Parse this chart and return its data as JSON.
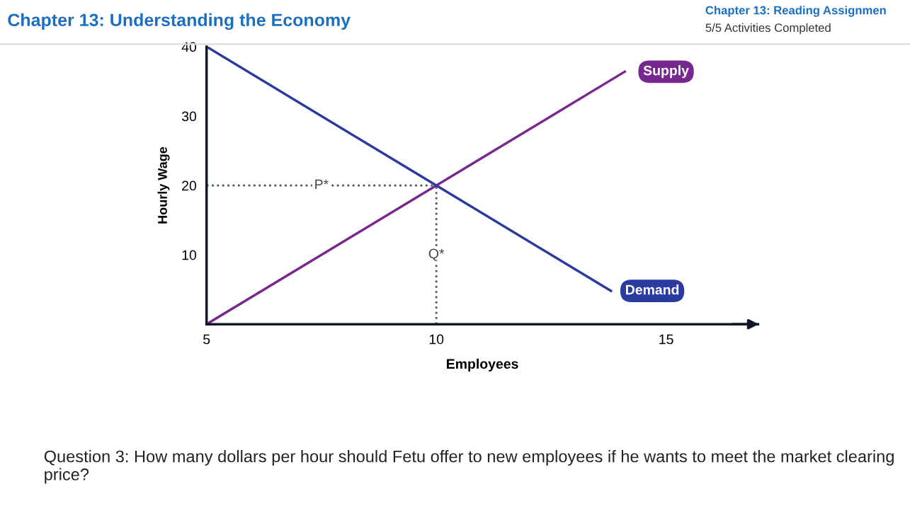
{
  "chart_data": {
    "type": "line",
    "title": "Chapter 13: Understanding the Economy",
    "xlabel": "Employees",
    "ylabel": "Hourly Wage",
    "series": [
      {
        "color": "#76288f",
        "x": [
          5,
          14.1
        ],
        "values": [
          0,
          36.4
        ]
      },
      {
        "color": "#2b3a9e",
        "x": [
          5,
          13.8
        ],
        "values": [
          40,
          4.8
        ]
      }
    ],
    "xlim": [
      5,
      17
    ],
    "ylim": [
      0,
      40
    ],
    "xticks": [
      5,
      10,
      15
    ],
    "yticks": [
      10,
      20,
      30,
      40
    ],
    "grid": false,
    "legend": false,
    "marker": "none",
    "line_style": "solid",
    "ref_lines": [
      {
        "axis": "y",
        "value": 20,
        "label": "P*",
        "color": "#555555",
        "line_style": "dotted"
      },
      {
        "axis": "x",
        "value": 10,
        "label": "Q*",
        "color": "#555555",
        "line_style": "dotted"
      }
    ],
    "annotations": [
      "Chapter 13: Reading Assignmen",
      "5/5 Activities Completed",
      "Question 3: How many dollars per hour should Fetu offer to new employees if he wants to meet the market clearing price?",
      {
        "text": "Supply",
        "x": 14.1,
        "y": 36.4
      },
      {
        "text": "Demand",
        "x": 13.8,
        "y": 4.8
      }
    ]
  }
}
